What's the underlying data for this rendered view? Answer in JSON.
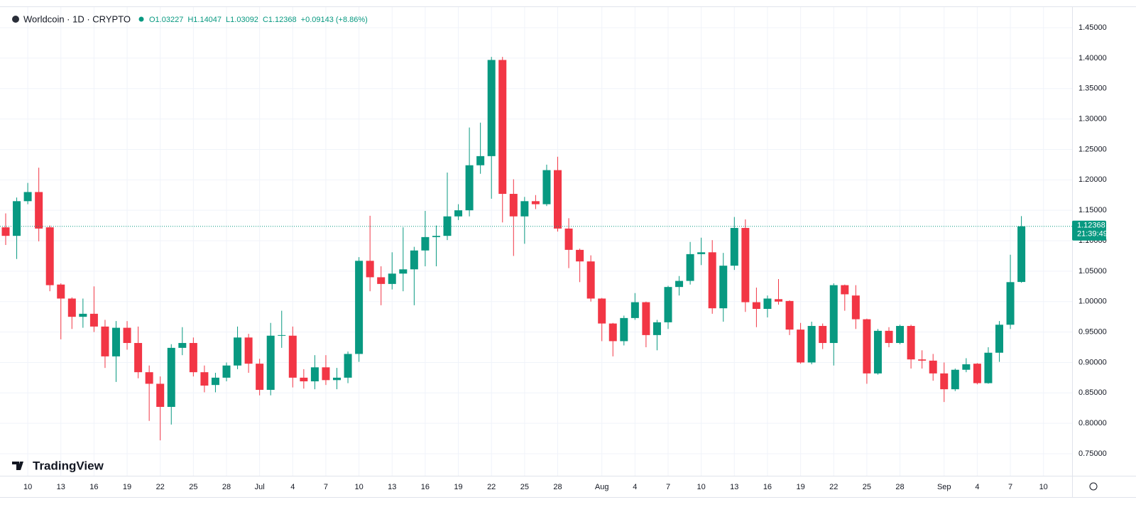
{
  "chart_data": {
    "type": "candlestick",
    "title": "Worldcoin · 1D · CRYPTO",
    "legend_values": [
      {
        "value": 1.03227,
        "label": "O1.03227"
      },
      {
        "value": 1.14047,
        "label": "H1.14047"
      },
      {
        "value": 1.03092,
        "label": "L1.03092"
      },
      {
        "value": 1.12368,
        "label": "C1.12368"
      },
      {
        "value": 0.09143,
        "label": "+0.09143 (+8.86%)"
      }
    ],
    "categories": [
      null,
      null,
      "10",
      null,
      null,
      "13",
      null,
      null,
      "16",
      null,
      null,
      "19",
      null,
      null,
      "22",
      null,
      null,
      "25",
      null,
      null,
      "28",
      null,
      null,
      "Jul",
      null,
      null,
      "4",
      null,
      null,
      "7",
      null,
      null,
      "10",
      null,
      null,
      "13",
      null,
      null,
      "16",
      null,
      null,
      "19",
      null,
      null,
      "22",
      null,
      null,
      "25",
      null,
      null,
      "28",
      null,
      null,
      null,
      "Aug",
      null,
      null,
      "4",
      null,
      null,
      "7",
      null,
      null,
      "10",
      null,
      null,
      "13",
      null,
      null,
      "16",
      null,
      null,
      "19",
      null,
      null,
      "22",
      null,
      null,
      "25",
      null,
      null,
      "28",
      null,
      null,
      null,
      "Sep",
      null,
      null,
      "4",
      null,
      null,
      "7",
      null,
      null,
      "10"
    ],
    "open": [
      1.122,
      1.108,
      1.165,
      1.18,
      1.122,
      1.028,
      1.005,
      0.975,
      0.98,
      0.959,
      0.91,
      0.957,
      0.932,
      0.884,
      0.865,
      0.827,
      0.924,
      0.932,
      0.884,
      0.863,
      0.875,
      0.895,
      0.941,
      0.898,
      0.855,
      0.944,
      0.944,
      0.875,
      0.869,
      0.892,
      0.871,
      0.875,
      0.914,
      1.067,
      1.04,
      1.029,
      1.046,
      1.053,
      1.084,
      1.106,
      1.108,
      1.14,
      1.15,
      1.224,
      1.239,
      1.397,
      1.177,
      1.14,
      1.165,
      1.16,
      1.216,
      1.12,
      1.085,
      1.066,
      1.005,
      0.964,
      0.935,
      0.973,
      0.999,
      0.945,
      0.966,
      1.024,
      1.034,
      1.078,
      1.081,
      0.989,
      1.059,
      1.121,
      0.999,
      0.988,
      1.004,
      1.001,
      0.954,
      0.9,
      0.96,
      0.932,
      1.027,
      1.01,
      0.971,
      0.882,
      0.952,
      0.932,
      0.96,
      0.905,
      0.903,
      0.882,
      0.856,
      0.888,
      0.898,
      0.866,
      0.916,
      0.962,
      1.03227,
      null,
      null
    ],
    "high": [
      1.145,
      1.171,
      1.195,
      1.22,
      1.125,
      1.03,
      1.007,
      1.005,
      1.025,
      0.97,
      0.968,
      0.968,
      0.959,
      0.895,
      0.877,
      0.93,
      0.958,
      0.941,
      0.895,
      0.883,
      0.9,
      0.959,
      0.947,
      0.906,
      0.965,
      0.985,
      0.959,
      0.889,
      0.912,
      0.912,
      0.891,
      0.918,
      1.073,
      1.141,
      1.058,
      1.081,
      1.122,
      1.09,
      1.149,
      1.125,
      1.212,
      1.16,
      1.286,
      1.294,
      1.402,
      1.402,
      1.201,
      1.172,
      1.175,
      1.225,
      1.238,
      1.137,
      1.087,
      1.076,
      1.006,
      0.965,
      0.977,
      1.014,
      1.0,
      0.97,
      1.026,
      1.042,
      1.098,
      1.105,
      1.101,
      1.08,
      1.139,
      1.135,
      1.023,
      1.01,
      1.037,
      1.002,
      0.965,
      0.967,
      0.964,
      1.03,
      1.028,
      1.027,
      0.972,
      0.955,
      0.958,
      0.962,
      0.962,
      0.92,
      0.914,
      0.9,
      0.89,
      0.907,
      0.899,
      0.925,
      0.968,
      1.077,
      1.14047,
      null,
      null
    ],
    "low": [
      1.093,
      1.07,
      1.16,
      1.099,
      1.017,
      0.938,
      0.955,
      0.957,
      0.95,
      0.891,
      0.868,
      0.921,
      0.874,
      0.804,
      0.772,
      0.798,
      0.912,
      0.877,
      0.851,
      0.851,
      0.869,
      0.889,
      0.883,
      0.846,
      0.846,
      0.924,
      0.859,
      0.857,
      0.856,
      0.863,
      0.856,
      0.866,
      0.901,
      1.017,
      0.994,
      1.02,
      1.017,
      0.994,
      1.058,
      1.058,
      1.101,
      1.134,
      1.14,
      1.21,
      1.169,
      1.13,
      1.075,
      1.095,
      1.152,
      1.157,
      1.115,
      1.055,
      1.032,
      1.0,
      0.935,
      0.91,
      0.928,
      0.97,
      0.925,
      0.92,
      0.955,
      1.01,
      1.028,
      1.06,
      0.98,
      0.967,
      1.052,
      0.983,
      0.958,
      0.974,
      0.995,
      0.945,
      0.898,
      0.897,
      0.922,
      0.895,
      0.985,
      0.955,
      0.865,
      0.88,
      0.925,
      0.93,
      0.89,
      0.89,
      0.87,
      0.835,
      0.853,
      0.884,
      0.864,
      0.865,
      0.901,
      0.955,
      1.03092,
      null,
      null
    ],
    "close": [
      1.108,
      1.165,
      1.18,
      1.12,
      1.027,
      1.005,
      0.975,
      0.98,
      0.959,
      0.91,
      0.957,
      0.932,
      0.884,
      0.865,
      0.827,
      0.924,
      0.932,
      0.884,
      0.862,
      0.875,
      0.895,
      0.941,
      0.898,
      0.855,
      0.944,
      0.945,
      0.875,
      0.869,
      0.892,
      0.871,
      0.875,
      0.914,
      1.067,
      1.04,
      1.029,
      1.046,
      1.053,
      1.084,
      1.106,
      1.108,
      1.14,
      1.15,
      1.224,
      1.239,
      1.397,
      1.177,
      1.14,
      1.165,
      1.16,
      1.216,
      1.12,
      1.085,
      1.066,
      1.005,
      0.964,
      0.935,
      0.973,
      0.999,
      0.945,
      0.966,
      1.024,
      1.034,
      1.078,
      1.081,
      0.989,
      1.059,
      1.121,
      0.999,
      0.988,
      1.005,
      1.0,
      0.954,
      0.9,
      0.96,
      0.932,
      1.027,
      1.012,
      0.971,
      0.882,
      0.952,
      0.932,
      0.96,
      0.905,
      0.903,
      0.882,
      0.856,
      0.888,
      0.897,
      0.866,
      0.916,
      0.962,
      1.032,
      1.12368,
      null,
      null
    ],
    "up_color": "#089981",
    "down_color": "#f23645",
    "ylim": [
      0.74,
      1.48
    ],
    "yticks": [
      {
        "value": 0.75,
        "label": "0.75000"
      },
      {
        "value": 0.8,
        "label": "0.80000"
      },
      {
        "value": 0.85,
        "label": "0.85000"
      },
      {
        "value": 0.9,
        "label": "0.90000"
      },
      {
        "value": 0.95,
        "label": "0.95000"
      },
      {
        "value": 1.0,
        "label": "1.00000"
      },
      {
        "value": 1.05,
        "label": "1.05000"
      },
      {
        "value": 1.1,
        "label": "1.10000"
      },
      {
        "value": 1.15,
        "label": "1.15000"
      },
      {
        "value": 1.2,
        "label": "1.20000"
      },
      {
        "value": 1.25,
        "label": "1.25000"
      },
      {
        "value": 1.3,
        "label": "1.30000"
      },
      {
        "value": 1.35,
        "label": "1.35000"
      },
      {
        "value": 1.4,
        "label": "1.40000"
      },
      {
        "value": 1.45,
        "label": "1.45000"
      }
    ],
    "grid": true,
    "last_price": {
      "value": 1.12368,
      "label": "1.12368"
    },
    "countdown": "21:39:49",
    "brand": "TradingView"
  }
}
